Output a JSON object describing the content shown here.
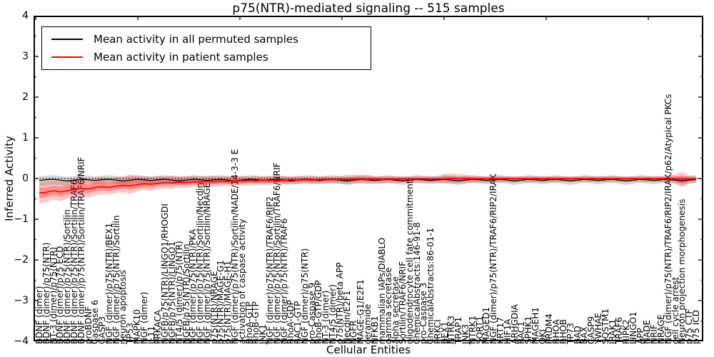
{
  "title": "p75(NTR)-mediated signaling -- 515 samples",
  "axes": {
    "ylabel": "Inferred Activity",
    "xlabel": "Cellular Entities",
    "ylim": [
      -4,
      4
    ],
    "ytick_labels": [
      "4",
      "3",
      "2",
      "1",
      "0",
      "−1",
      "−2",
      "−3",
      "−4"
    ],
    "ytick_values": [
      4,
      3,
      2,
      1,
      0,
      -1,
      -2,
      -3,
      -4
    ]
  },
  "legend": [
    {
      "label": "Mean activity in all permuted samples",
      "color": "#000000"
    },
    {
      "label": "Mean activity in patient samples",
      "color": "#ff0000"
    }
  ],
  "chart_data": {
    "type": "line",
    "title": "p75(NTR)-mediated signaling -- 515 samples",
    "xlabel": "Cellular Entities",
    "ylabel": "Inferred Activity",
    "ylim": [
      -4,
      4
    ],
    "grid": false,
    "zero_reference_line": true,
    "legend_position": "upper left",
    "x_categories": [
      "BDNF (dimer)",
      "BDNF (dimer)/p75(NTR)",
      "NT-3 (dimer)/p75(NTR)",
      "BDNF (dimer)/p75 ECD",
      "BDNF (dimer)/p75(NTR)/Sortilin",
      "BDNF (dimer)/p75(NTR)/Sortilin/TRAF6",
      "BDNF (dimer)/p75(NTR)/Sortilin/TRAF6/NRIF",
      "proBDNF",
      "Caspase 6",
      "CASP3",
      "NGF (dimer)/p75(NTR)/BEX1",
      "NGF (dimer)/p75(NTR)/Sortilin",
      "neuron apoptosis",
      "TP53",
      "MAPK10",
      "NGF (dimer)",
      "IL11",
      "PRKACA",
      "NGFB/p75(NTR)/LINGO1/RHOGDI",
      "NGFB/p75(NTR)/LINGO1",
      "NT4/5 (dimer)/p75(NTR)",
      "NGFB/p75(NTR)/Sortilin",
      "NGF (dimer)/p75(NTR)/PKA",
      "NGF (dimer)/p75(NTR)/Sortilin/Necdin",
      "NGF (dimer)/p75(NTR)/Sortilin/NRAGE",
      "p75(NTR)/NRAGE",
      "p75(NTR)/MAGE-G1",
      "p75(NTR)/MAGE-H1",
      "NGF (dimer)/p75(NTR)/Sortilin/NADE/14-3-3 E",
      "activation of caspase activity",
      "RhoA-GTP",
      "RhoB-GTP",
      "JNK1",
      "NGF (dimer)/p75(NTR)/TRAF6/RIP2",
      "NGF (dimer)/p75(NTR)/Sortilin/TRAF6/NRIF",
      "NGF (dimer)/p75(NTR)/TRAF6",
      "RhoA-GDP",
      "RAC1-GTP",
      "NGF (dimer)/p75(NTR)",
      "pro-Caspase 9",
      "RhoB-GTP/GDP",
      "NT-3 (dimer)",
      "NT4/5 (dimer)",
      "p75(NTR)/beta APP",
      "Necdin/E2F1",
      "NGFR",
      "MAGE-G1/E2F1",
      "ceramide",
      "NFKB1",
      "mammalian IAPs/DIABLO",
      "gamma secretase",
      "alpha secretase",
      "Sortilin/TRAF6/NRIF",
      "oligodendrocyte cell fate commitment",
      "ChemicalAbstracts:146-91-8",
      "pro-Caspase 3",
      "ChemicalAbstracts:86-01-1",
      "PRKCI",
      "BEX1",
      "NTRK3",
      "TRAP1",
      "JNK3",
      "NTRK1",
      "SORT1",
      "MAGED1",
      "NGF (dimer)/p75(NTR)/TRAF6/RIP2/IRAK",
      "KRT17",
      "HIF1A",
      "ARHGDIA",
      "RAC1",
      "SPHK1",
      "MAGEH1",
      "QKI",
      "PRDM4",
      "RHOA",
      "RHOB",
      "TP73",
      "BAD",
      "BAX",
      "CASP9",
      "YWHAE",
      "SQSTM1",
      "IRAK1",
      "TRAF6",
      "RIPK2",
      "LINGO1",
      "APP",
      "NADE",
      "NRIF",
      "NRAGE",
      "NGF (dimer)/p75(NTR)/TRAF6/RIP2/IRAK/p62/Atypical PKCs",
      "cell cycle arrest",
      "Neuron projection morphogenesis",
      "p75 CTF",
      "p75 ICD"
    ],
    "series": [
      {
        "name": "Mean activity in all permuted samples",
        "color": "#000000",
        "band_color": "rgba(0,0,0,0.16)",
        "values": [
          -0.05,
          -0.03,
          -0.02,
          -0.04,
          -0.06,
          -0.04,
          -0.02,
          -0.03,
          -0.05,
          -0.03,
          -0.02,
          -0.04,
          -0.06,
          -0.04,
          -0.02,
          -0.03,
          -0.05,
          -0.03,
          -0.02,
          -0.04,
          -0.06,
          -0.04,
          -0.02,
          -0.03,
          -0.05,
          -0.03,
          -0.02,
          -0.04,
          -0.06,
          -0.04,
          -0.02,
          -0.03,
          -0.05,
          -0.03,
          -0.02,
          -0.04,
          -0.06,
          -0.04,
          -0.02,
          -0.03,
          -0.05,
          -0.03,
          -0.02,
          -0.04,
          -0.06,
          -0.04,
          -0.02,
          -0.03,
          -0.05,
          -0.03,
          -0.02,
          -0.04,
          -0.06,
          -0.04,
          -0.02,
          -0.03,
          -0.05,
          -0.03,
          -0.02,
          -0.04,
          -0.06,
          -0.04,
          -0.02,
          -0.03,
          -0.05,
          -0.03,
          -0.02,
          -0.04,
          -0.06,
          -0.04,
          -0.02,
          -0.03,
          -0.05,
          -0.03,
          -0.02,
          -0.04,
          -0.06,
          -0.04,
          -0.02,
          -0.03,
          -0.05,
          -0.03,
          -0.02,
          -0.04,
          -0.06,
          -0.04,
          -0.02,
          -0.03,
          -0.05,
          -0.03,
          -0.02,
          -0.04,
          -0.06,
          -0.04,
          -0.02
        ],
        "band_hi": [
          0.05,
          0.07,
          0.08,
          0.06,
          0.04,
          0.06,
          0.08,
          0.07,
          0.05,
          0.07,
          0.08,
          0.06,
          0.04,
          0.06,
          0.08,
          0.07,
          0.05,
          0.07,
          0.08,
          0.06,
          0.04,
          0.06,
          0.08,
          0.07,
          0.05,
          0.07,
          0.08,
          0.06,
          0.04,
          0.06,
          0.08,
          0.07,
          0.05,
          0.07,
          0.08,
          0.06,
          0.04,
          0.06,
          0.08,
          0.07,
          0.05,
          0.07,
          0.08,
          0.06,
          0.04,
          0.06,
          0.08,
          0.07,
          0.05,
          0.07,
          0.08,
          0.06,
          0.04,
          0.06,
          0.08,
          0.07,
          0.05,
          0.07,
          0.08,
          0.06,
          0.04,
          0.06,
          0.08,
          0.07,
          0.05,
          0.07,
          0.08,
          0.06,
          0.04,
          0.06,
          0.08,
          0.07,
          0.05,
          0.07,
          0.08,
          0.06,
          0.04,
          0.06,
          0.08,
          0.07,
          0.05,
          0.07,
          0.08,
          0.06,
          0.04,
          0.06,
          0.08,
          0.07,
          0.05,
          0.07,
          0.08,
          0.06,
          0.04,
          0.06,
          0.08
        ],
        "band_lo": [
          -0.18,
          -0.17,
          -0.15,
          -0.16,
          -0.18,
          -0.15,
          -0.11,
          -0.12,
          -0.14,
          -0.12,
          -0.11,
          -0.13,
          -0.16,
          -0.13,
          -0.11,
          -0.12,
          -0.14,
          -0.12,
          -0.11,
          -0.13,
          -0.16,
          -0.13,
          -0.11,
          -0.12,
          -0.14,
          -0.12,
          -0.11,
          -0.13,
          -0.16,
          -0.13,
          -0.11,
          -0.12,
          -0.14,
          -0.12,
          -0.11,
          -0.13,
          -0.16,
          -0.13,
          -0.11,
          -0.12,
          -0.14,
          -0.12,
          -0.11,
          -0.13,
          -0.16,
          -0.13,
          -0.11,
          -0.12,
          -0.14,
          -0.12,
          -0.11,
          -0.13,
          -0.16,
          -0.13,
          -0.11,
          -0.12,
          -0.14,
          -0.12,
          -0.11,
          -0.13,
          -0.16,
          -0.13,
          -0.11,
          -0.12,
          -0.14,
          -0.12,
          -0.11,
          -0.13,
          -0.16,
          -0.13,
          -0.11,
          -0.12,
          -0.14,
          -0.12,
          -0.11,
          -0.13,
          -0.16,
          -0.13,
          -0.11,
          -0.12,
          -0.14,
          -0.12,
          -0.11,
          -0.13,
          -0.16,
          -0.13,
          -0.11,
          -0.12,
          -0.14,
          -0.12,
          -0.11,
          -0.13,
          -0.16,
          -0.13,
          -0.11
        ]
      },
      {
        "name": "Mean activity in patient samples",
        "color": "#ff0000",
        "band_color": "rgba(255,0,0,0.22)",
        "values": [
          -0.36,
          -0.34,
          -0.3,
          -0.33,
          -0.3,
          -0.27,
          -0.24,
          -0.26,
          -0.22,
          -0.2,
          -0.22,
          -0.19,
          -0.17,
          -0.18,
          -0.15,
          -0.13,
          -0.14,
          -0.12,
          -0.1,
          -0.11,
          -0.09,
          -0.1,
          -0.08,
          -0.09,
          -0.07,
          -0.08,
          -0.06,
          -0.07,
          -0.05,
          -0.06,
          -0.05,
          -0.06,
          -0.04,
          -0.05,
          -0.04,
          -0.05,
          -0.03,
          -0.04,
          -0.03,
          -0.04,
          -0.03,
          -0.02,
          -0.03,
          -0.02,
          -0.03,
          -0.02,
          -0.01,
          -0.02,
          -0.01,
          -0.02,
          -0.01,
          -0.02,
          -0.01,
          -0.02,
          -0.01,
          -0.01,
          -0.02,
          -0.01,
          -0.01,
          0.0,
          -0.01,
          0.0,
          -0.01,
          0.0,
          -0.01,
          0.0,
          -0.01,
          0.0,
          -0.01,
          0.0,
          -0.01,
          0.0,
          -0.01,
          0.0,
          -0.01,
          0.0,
          -0.01,
          0.0,
          -0.01,
          0.0,
          -0.01,
          0.0,
          -0.01,
          0.0,
          -0.01,
          0.0,
          -0.01,
          0.0,
          -0.01,
          0.0,
          -0.01,
          -0.01,
          -0.02,
          -0.01,
          -0.01
        ],
        "band_hi": [
          -0.1,
          -0.08,
          -0.05,
          -0.07,
          -0.04,
          -0.02,
          0.0,
          -0.02,
          0.01,
          0.03,
          0.0,
          0.03,
          0.05,
          0.1,
          0.06,
          0.05,
          0.04,
          0.06,
          0.05,
          0.07,
          0.06,
          0.05,
          0.06,
          0.05,
          0.07,
          0.06,
          0.05,
          0.06,
          0.05,
          0.06,
          0.05,
          0.06,
          0.05,
          0.06,
          0.05,
          0.06,
          0.05,
          0.06,
          0.05,
          0.06,
          0.05,
          0.06,
          0.05,
          0.06,
          0.09,
          0.09,
          0.09,
          0.09,
          0.06,
          0.05,
          0.06,
          0.05,
          0.06,
          0.05,
          0.06,
          0.05,
          0.06,
          0.05,
          0.11,
          0.12,
          0.11,
          0.09,
          0.06,
          0.05,
          0.06,
          0.05,
          0.06,
          0.05,
          0.06,
          0.05,
          0.06,
          0.05,
          0.06,
          0.05,
          0.06,
          0.05,
          0.06,
          0.05,
          0.06,
          0.05,
          0.06,
          0.05,
          0.06,
          0.05,
          0.06,
          0.05,
          0.06,
          0.05,
          0.06,
          0.05,
          0.06,
          0.1,
          0.16,
          0.08,
          0.05
        ],
        "band_lo": [
          -0.62,
          -0.58,
          -0.52,
          -0.56,
          -0.5,
          -0.46,
          -0.44,
          -0.48,
          -0.42,
          -0.38,
          -0.4,
          -0.36,
          -0.34,
          -0.38,
          -0.32,
          -0.28,
          -0.3,
          -0.26,
          -0.24,
          -0.26,
          -0.22,
          -0.24,
          -0.2,
          -0.22,
          -0.19,
          -0.21,
          -0.18,
          -0.19,
          -0.17,
          -0.18,
          -0.16,
          -0.17,
          -0.15,
          -0.16,
          -0.14,
          -0.15,
          -0.13,
          -0.14,
          -0.13,
          -0.14,
          -0.12,
          -0.13,
          -0.12,
          -0.13,
          -0.14,
          -0.13,
          -0.12,
          -0.13,
          -0.11,
          -0.12,
          -0.11,
          -0.12,
          -0.1,
          -0.11,
          -0.1,
          -0.11,
          -0.1,
          -0.11,
          -0.12,
          -0.13,
          -0.12,
          -0.11,
          -0.1,
          -0.11,
          -0.1,
          -0.09,
          -0.1,
          -0.09,
          -0.1,
          -0.09,
          -0.1,
          -0.09,
          -0.1,
          -0.09,
          -0.1,
          -0.09,
          -0.08,
          -0.09,
          -0.08,
          -0.09,
          -0.08,
          -0.09,
          -0.08,
          -0.09,
          -0.08,
          -0.09,
          -0.08,
          -0.09,
          -0.08,
          -0.09,
          -0.1,
          -0.12,
          -0.22,
          -0.12,
          -0.1
        ]
      }
    ]
  }
}
